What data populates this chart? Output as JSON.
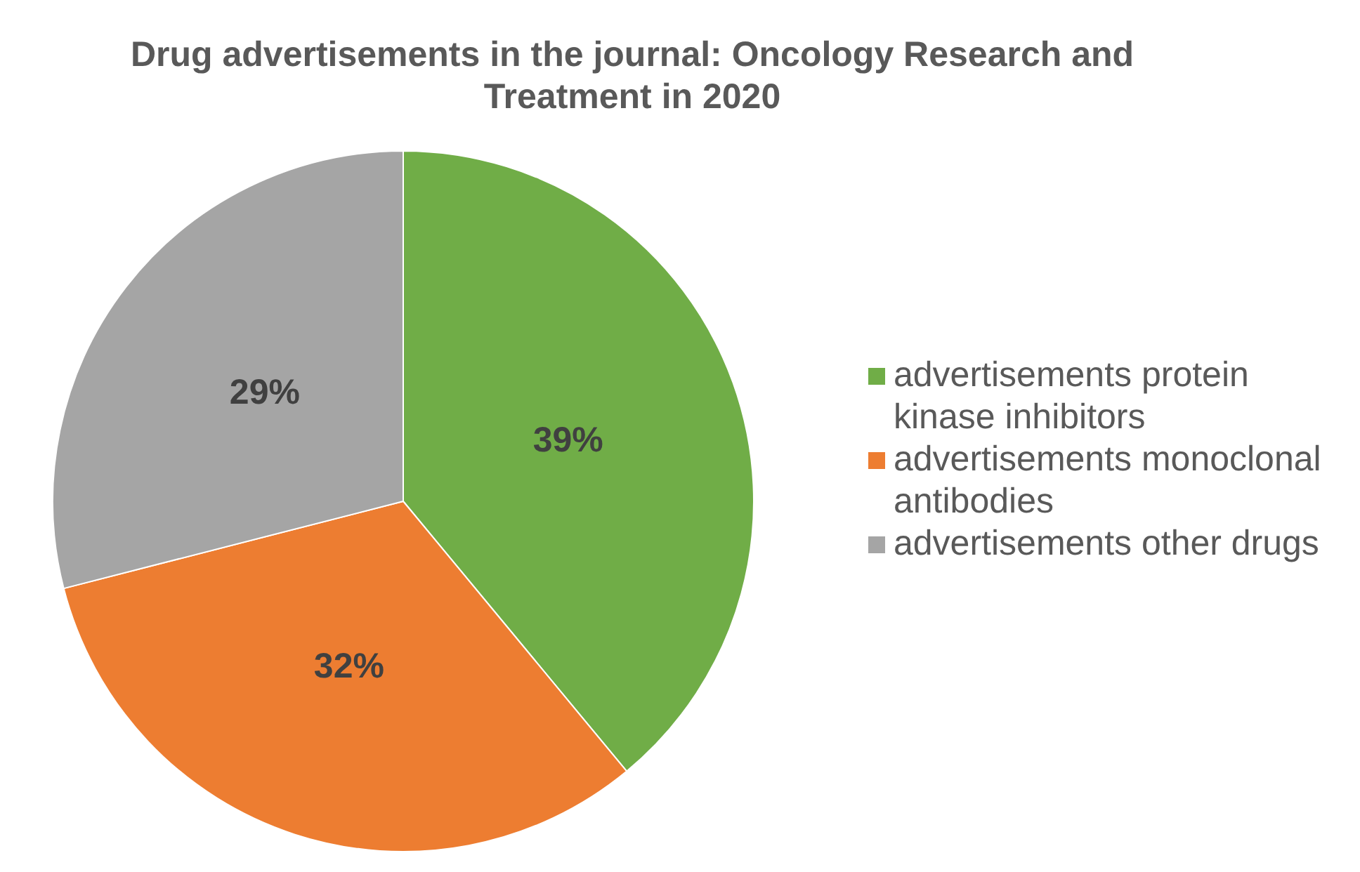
{
  "chart_data": {
    "type": "pie",
    "title": "Drug advertisements in the journal: Oncology Research and Treatment in 2020",
    "categories": [
      "advertisements protein kinase inhibitors",
      "advertisements monoclonal antibodies",
      "advertisements other drugs"
    ],
    "values": [
      39,
      32,
      29
    ],
    "colors": [
      "#70ad47",
      "#ed7d31",
      "#a5a5a5"
    ],
    "value_labels": [
      "39%",
      "32%",
      "29%"
    ],
    "legend": "right"
  }
}
